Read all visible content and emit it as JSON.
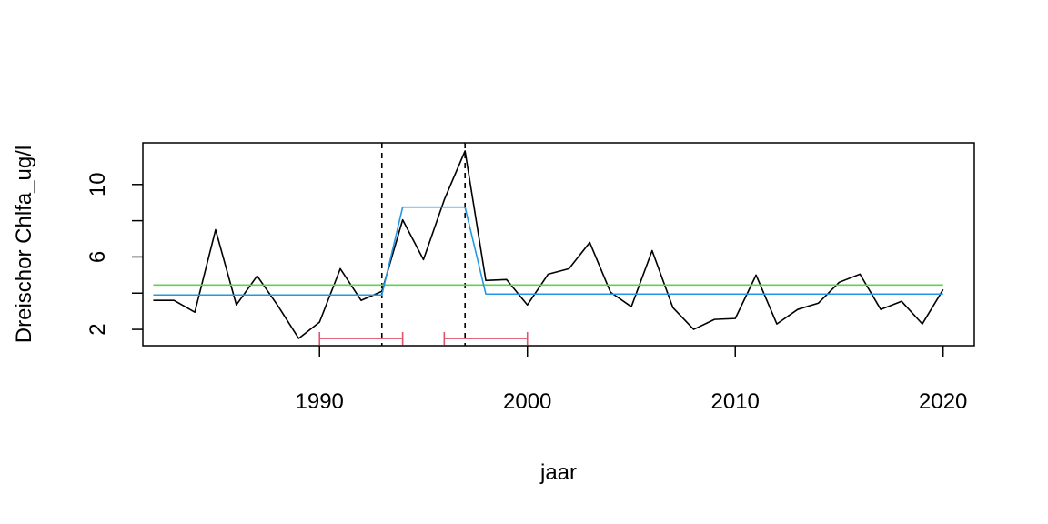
{
  "chart_data": {
    "type": "line",
    "title": "",
    "xlabel": "jaar",
    "ylabel": "Dreischor Chlfa_ug/l",
    "xlim": [
      1981.5,
      2021.5
    ],
    "ylim": [
      1.1,
      12.3
    ],
    "xticks": [
      1990,
      2000,
      2010,
      2020
    ],
    "yticks": [
      2,
      6,
      10
    ],
    "yticks_minor": [
      4,
      8
    ],
    "grid": false,
    "legend": "none",
    "series": [
      {
        "color": "#000000",
        "style": "line",
        "points": [
          [
            1982,
            3.6
          ],
          [
            1983,
            3.6
          ],
          [
            1984,
            2.95
          ],
          [
            1985,
            7.5
          ],
          [
            1986,
            3.35
          ],
          [
            1987,
            4.95
          ],
          [
            1988,
            3.3
          ],
          [
            1989,
            1.5
          ],
          [
            1990,
            2.4
          ],
          [
            1991,
            5.35
          ],
          [
            1992,
            3.6
          ],
          [
            1993,
            4.1
          ],
          [
            1994,
            8.05
          ],
          [
            1995,
            5.85
          ],
          [
            1996,
            9.15
          ],
          [
            1997,
            11.85
          ],
          [
            1998,
            4.7
          ],
          [
            1999,
            4.75
          ],
          [
            2000,
            3.35
          ],
          [
            2001,
            5.05
          ],
          [
            2002,
            5.35
          ],
          [
            2003,
            6.8
          ],
          [
            2004,
            4.05
          ],
          [
            2005,
            3.25
          ],
          [
            2006,
            6.35
          ],
          [
            2007,
            3.2
          ],
          [
            2008,
            2.0
          ],
          [
            2009,
            2.55
          ],
          [
            2010,
            2.6
          ],
          [
            2011,
            5.0
          ],
          [
            2012,
            2.3
          ],
          [
            2013,
            3.1
          ],
          [
            2014,
            3.45
          ],
          [
            2015,
            4.6
          ],
          [
            2016,
            5.05
          ],
          [
            2017,
            3.1
          ],
          [
            2018,
            3.55
          ],
          [
            2019,
            2.3
          ],
          [
            2020,
            4.2
          ]
        ]
      },
      {
        "color": "#61D04F",
        "style": "line",
        "points": [
          [
            1982,
            4.45
          ],
          [
            2020,
            4.45
          ]
        ]
      },
      {
        "color": "#2297E6",
        "style": "line",
        "points": [
          [
            1982,
            3.9
          ],
          [
            1993,
            3.9
          ],
          [
            1994,
            8.75
          ],
          [
            1997,
            8.75
          ],
          [
            1998,
            3.95
          ],
          [
            2020,
            3.95
          ]
        ]
      }
    ],
    "breakpoints": {
      "color": "#000000",
      "style": "dashed",
      "x": [
        1993,
        1997
      ]
    },
    "confidence_intervals": {
      "color": "#DF536B",
      "y": 1.5,
      "intervals": [
        [
          1990,
          1994
        ],
        [
          1996,
          2000
        ]
      ]
    }
  }
}
